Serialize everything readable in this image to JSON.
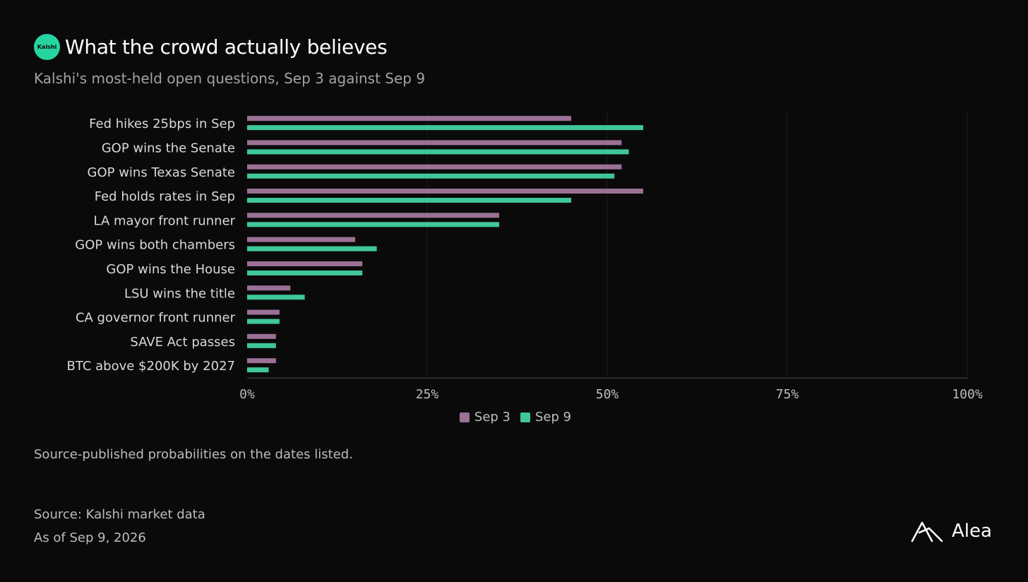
{
  "header": {
    "logo_text": "Kalshi",
    "title": "What the crowd actually believes",
    "subtitle": "Kalshi's most-held open questions, Sep 3 against Sep 9"
  },
  "chart_data": {
    "type": "bar",
    "orientation": "horizontal",
    "categories": [
      "Fed hikes 25bps in Sep",
      "GOP wins the Senate",
      "GOP wins Texas Senate",
      "Fed holds rates in Sep",
      "LA mayor front runner",
      "GOP wins both chambers",
      "GOP wins the House",
      "LSU wins the title",
      "CA governor front runner",
      "SAVE Act passes",
      "BTC above $200K by 2027"
    ],
    "series": [
      {
        "name": "Sep 3",
        "color": "#9b7196",
        "values": [
          45,
          52,
          52,
          55,
          35,
          15,
          16,
          6,
          4.5,
          4,
          4
        ]
      },
      {
        "name": "Sep 9",
        "color": "#3fc79b",
        "values": [
          55,
          53,
          51,
          45,
          35,
          18,
          16,
          8,
          4.5,
          4,
          3
        ]
      }
    ],
    "xlim": [
      0,
      100
    ],
    "xticks": [
      "0%",
      "25%",
      "50%",
      "75%",
      "100%"
    ],
    "grid": true,
    "legend": "bottom"
  },
  "note": "Source-published probabilities on the dates listed.",
  "footer": {
    "source": "Source: Kalshi market data",
    "asof": "As of Sep 9, 2026"
  },
  "brand": {
    "name": "Alea"
  }
}
